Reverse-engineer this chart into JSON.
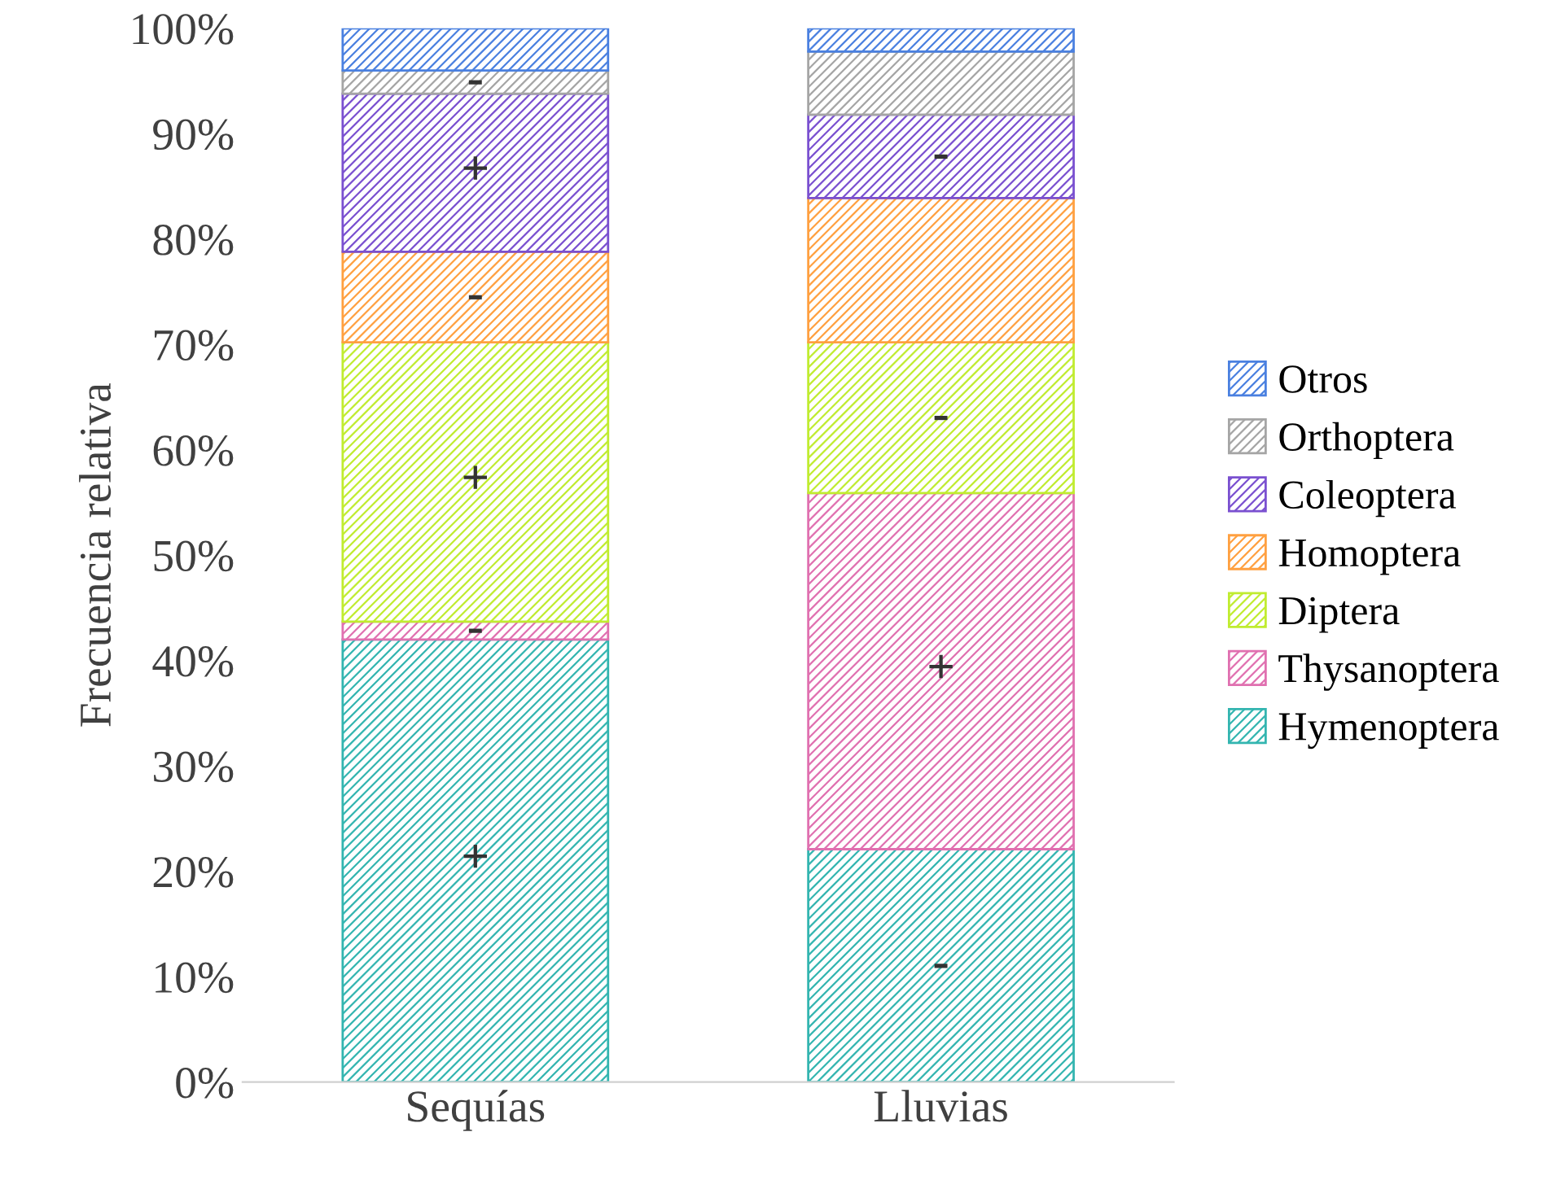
{
  "chart_data": {
    "type": "bar",
    "stacked": true,
    "ylabel": "Frecuencia relativa",
    "categories": [
      "Sequías",
      "Lluvias"
    ],
    "ylim": [
      0,
      100
    ],
    "yticks": [
      {
        "value": 0,
        "label": "0%"
      },
      {
        "value": 10,
        "label": "10%"
      },
      {
        "value": 20,
        "label": "20%"
      },
      {
        "value": 30,
        "label": "30%"
      },
      {
        "value": 40,
        "label": "40%"
      },
      {
        "value": 50,
        "label": "50%"
      },
      {
        "value": 60,
        "label": "60%"
      },
      {
        "value": 70,
        "label": "70%"
      },
      {
        "value": 80,
        "label": "80%"
      },
      {
        "value": 90,
        "label": "90%"
      },
      {
        "value": 100,
        "label": "100%"
      }
    ],
    "grid": false,
    "legend": "right",
    "series": [
      {
        "name": "Hymenoptera",
        "color": "#33b5b0",
        "values": [
          42,
          22.1
        ],
        "value_labels": [
          "+",
          "-"
        ]
      },
      {
        "name": "Thysanoptera",
        "color": "#e070b0",
        "values": [
          1.7,
          33.8
        ],
        "value_labels": [
          "-",
          "+"
        ]
      },
      {
        "name": "Diptera",
        "color": "#c0ec30",
        "values": [
          26.5,
          14.3
        ],
        "value_labels": [
          "+",
          "-"
        ]
      },
      {
        "name": "Homoptera",
        "color": "#ffa040",
        "values": [
          8.6,
          13.7
        ],
        "value_labels": [
          "-",
          null
        ]
      },
      {
        "name": "Coleoptera",
        "color": "#7a50d0",
        "values": [
          15,
          7.9
        ],
        "value_labels": [
          "+",
          "-"
        ]
      },
      {
        "name": "Orthoptera",
        "color": "#a5a5a5",
        "values": [
          2.2,
          6
        ],
        "value_labels": [
          "-",
          null
        ]
      },
      {
        "name": "Otros",
        "color": "#4a80e0",
        "values": [
          4,
          2.2
        ],
        "value_labels": [
          null,
          null
        ]
      }
    ]
  }
}
